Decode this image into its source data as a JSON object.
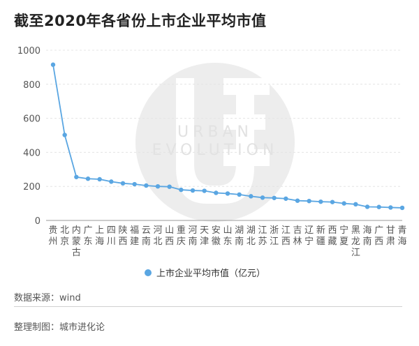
{
  "title": "截至2020年各省份上市企业平均市值",
  "source": "数据来源：wind",
  "producer": "整理制图：城市进化论",
  "watermark": {
    "line1": "URBAN",
    "line2": "EVOLUTION"
  },
  "colors": {
    "series": "#5aa6e2",
    "grid": "#e4e4e4",
    "axis": "#555555",
    "watermark": "#e9e9e9"
  },
  "chart_data": {
    "type": "line",
    "title": "截至2020年各省份上市企业平均市值",
    "x": [
      "贵州",
      "北京",
      "内蒙古",
      "广东",
      "上海",
      "四川",
      "陕西",
      "福建",
      "云南",
      "河北",
      "山西",
      "重庆",
      "河南",
      "天津",
      "安徽",
      "山东",
      "湖南",
      "湖北",
      "江苏",
      "浙江",
      "江西",
      "吉林",
      "辽宁",
      "新疆",
      "西藏",
      "宁夏",
      "黑龙江",
      "海南",
      "广西",
      "甘肃",
      "青海"
    ],
    "series": [
      {
        "name": "上市企业平均市值（亿元）",
        "values": [
          915,
          502,
          255,
          245,
          242,
          228,
          218,
          213,
          205,
          200,
          198,
          180,
          176,
          174,
          162,
          158,
          152,
          142,
          134,
          132,
          128,
          116,
          114,
          110,
          108,
          100,
          95,
          80,
          79,
          76,
          74
        ]
      }
    ],
    "yticks": [
      0,
      200,
      400,
      600,
      800,
      1000
    ],
    "ylim": [
      0,
      1000
    ],
    "grid": true,
    "legend": "bottom"
  }
}
